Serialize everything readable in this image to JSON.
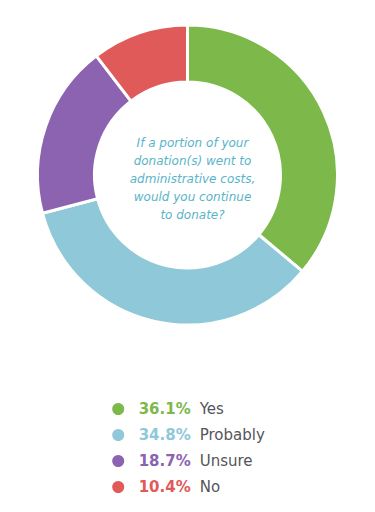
{
  "chart_data": {
    "type": "donut",
    "title": "If a portion of your\ndonation(s) went to\nadministrative costs,\nwould you continue\nto donate?",
    "categories": [
      "Yes",
      "Probably",
      "Unsure",
      "No"
    ],
    "values": [
      36.1,
      34.8,
      18.7,
      10.4
    ],
    "value_labels": [
      "36.1%",
      "34.8%",
      "18.7%",
      "10.4%"
    ],
    "colors": [
      "#7cb84a",
      "#8fc8d8",
      "#8b63b0",
      "#e05a5a"
    ],
    "legend": "bottom"
  }
}
